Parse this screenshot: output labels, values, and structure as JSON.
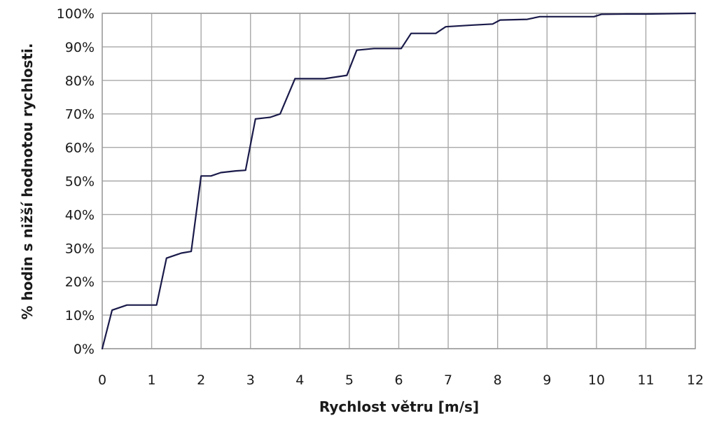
{
  "chart_data": {
    "type": "line",
    "title": "",
    "xlabel": "Rychlost větru [m/s]",
    "ylabel": "% hodin s nižší hodnotou rychlosti.",
    "xlim": [
      0,
      12
    ],
    "ylim": [
      0,
      100
    ],
    "x_ticks": [
      "0",
      "1",
      "2",
      "3",
      "4",
      "5",
      "6",
      "7",
      "8",
      "9",
      "10",
      "11",
      "12"
    ],
    "y_ticks": [
      "0%",
      "10%",
      "20%",
      "30%",
      "40%",
      "50%",
      "60%",
      "70%",
      "80%",
      "90%",
      "100%"
    ],
    "grid": true,
    "legend": "none",
    "series": [
      {
        "color": "#1a1a4a",
        "x": [
          0,
          0.2,
          0.5,
          1.1,
          1.3,
          1.6,
          1.8,
          2.0,
          2.2,
          2.4,
          2.7,
          2.9,
          3.1,
          3.4,
          3.6,
          3.9,
          4.5,
          4.95,
          5.15,
          5.5,
          6.05,
          6.25,
          6.75,
          6.95,
          7.5,
          7.9,
          8.05,
          8.6,
          8.85,
          9.95,
          10.1,
          10.6,
          11.0,
          12.0
        ],
        "y": [
          0,
          11.5,
          13,
          13,
          27,
          28.5,
          29,
          51.5,
          51.5,
          52.5,
          53,
          53.2,
          68.5,
          69,
          70,
          80.5,
          80.5,
          81.5,
          89,
          89.5,
          89.5,
          94,
          94,
          96,
          96.5,
          96.8,
          98,
          98.2,
          99,
          99,
          99.7,
          99.8,
          99.8,
          100
        ]
      }
    ]
  }
}
